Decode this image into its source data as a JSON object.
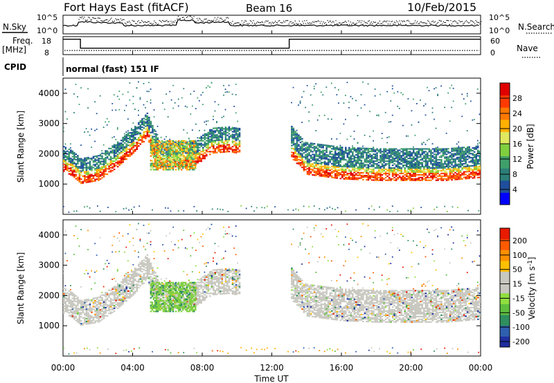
{
  "header": {
    "title": "Fort Hays East (fitACF)",
    "beam": "Beam 16",
    "date": "10/Feb/2015"
  },
  "side_labels": {
    "nsky": "N.Sky",
    "nsearch": "N.Search",
    "freq_line1": "Freq.",
    "freq_line2": "[MHz]",
    "nave": "Nave",
    "cpid": "CPID"
  },
  "noise_panel": {
    "left_ticks": [
      "10^5",
      "10^0"
    ],
    "right_ticks": [
      "10^5",
      "10^0"
    ]
  },
  "freq_panel": {
    "left_ticks": [
      "18",
      "8"
    ],
    "right_ticks": [
      "60",
      "0"
    ]
  },
  "cpid_text": "normal (fast) 151 IF",
  "colors": {
    "power_bar": [
      "#0000ff",
      "#1f4f9c",
      "#2b7f78",
      "#3f9f6a",
      "#7fcf3f",
      "#dfe85f",
      "#ffb000",
      "#ff7800",
      "#ff3a00",
      "#e00000"
    ],
    "velocity_bar": [
      "#1f2fa0",
      "#2f5faf",
      "#2f8f5f",
      "#5fbf3f",
      "#8fdf3f",
      "#c8c8c0",
      "#c8c8c0",
      "#ffc000",
      "#ff9000",
      "#ff5a00",
      "#e81a00"
    ],
    "range_band_power": "#ff9000",
    "range_band_velocity": "#c8c8c0"
  },
  "chart_data": [
    {
      "type": "heatmap",
      "name": "power",
      "ylabel": "Slant Range [km]",
      "yticks": [
        "1000",
        "2000",
        "3000",
        "4000"
      ],
      "ylim": [
        0,
        4500
      ],
      "colorbar_label": "Power [dB]",
      "colorbar_ticks": [
        "4",
        "8",
        "12",
        "16",
        "20",
        "24",
        "28"
      ],
      "colorbar_range": [
        0,
        32
      ],
      "main_echo_band": {
        "x_hours": [
          0,
          0.5,
          1,
          2,
          3,
          4,
          4.8,
          5.5,
          6.5,
          7.5,
          8.5,
          9.5,
          10,
          13,
          14,
          16,
          18,
          20,
          22,
          24
        ],
        "range_km": [
          1600,
          1450,
          1200,
          1300,
          1700,
          2200,
          2700,
          1750,
          1750,
          1750,
          2200,
          2250,
          2200,
          2100,
          1500,
          1350,
          1300,
          1300,
          1300,
          1400
        ]
      }
    },
    {
      "type": "heatmap",
      "name": "velocity",
      "ylabel": "Slant Range [km]",
      "yticks": [
        "1000",
        "2000",
        "3000",
        "4000"
      ],
      "ylim": [
        0,
        4500
      ],
      "colorbar_label": "Velocity [m s^-1]",
      "colorbar_ticks": [
        "200",
        "100",
        "50",
        "15",
        "-15",
        "-50",
        "-100",
        "-200"
      ],
      "colorbar_range": [
        -250,
        250
      ]
    }
  ],
  "x_axis": {
    "label": "Time UT",
    "ticks": [
      "00:00",
      "04:00",
      "08:00",
      "12:00",
      "16:00",
      "20:00",
      "00:00"
    ],
    "xlim_hours": [
      0,
      24
    ]
  }
}
